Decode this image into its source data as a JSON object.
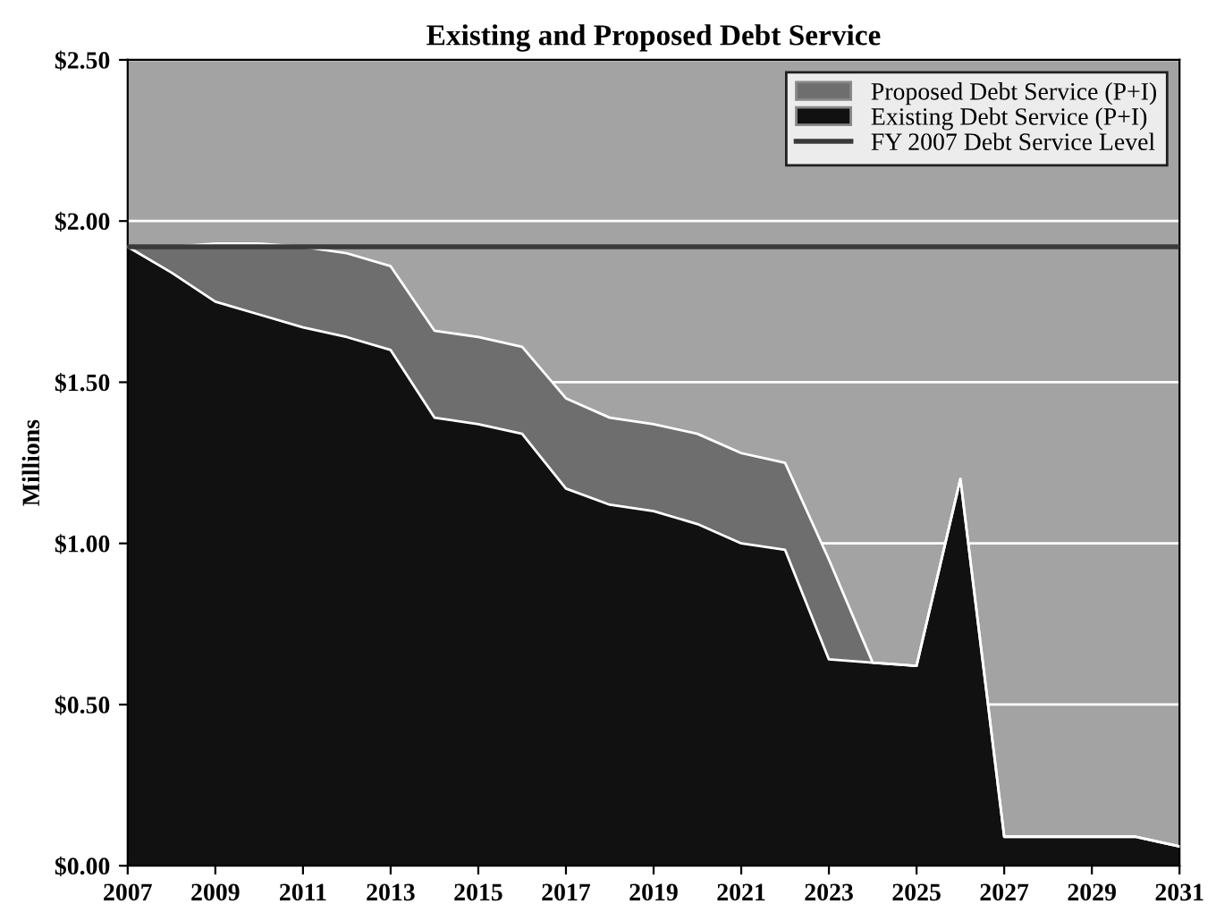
{
  "chart_data": {
    "type": "area",
    "title": "Existing and Proposed Debt Service",
    "ylabel": "Millions",
    "x": [
      2007,
      2008,
      2009,
      2010,
      2011,
      2012,
      2013,
      2014,
      2015,
      2016,
      2017,
      2018,
      2019,
      2020,
      2021,
      2022,
      2023,
      2024,
      2025,
      2026,
      2027,
      2028,
      2029,
      2030,
      2031
    ],
    "stacked": true,
    "series": [
      {
        "name": "Existing Debt Service (P+I)",
        "color": "#111111",
        "values": [
          1.92,
          1.84,
          1.75,
          1.71,
          1.67,
          1.64,
          1.6,
          1.39,
          1.37,
          1.34,
          1.17,
          1.12,
          1.1,
          1.06,
          1.0,
          0.98,
          0.64,
          0.63,
          0.62,
          1.2,
          0.09,
          0.09,
          0.09,
          0.09,
          0.06
        ]
      },
      {
        "name": "Proposed Debt Service (P+I)",
        "color": "#6e6e6e",
        "values": [
          0,
          0.08,
          0.18,
          0.22,
          0.25,
          0.26,
          0.26,
          0.27,
          0.27,
          0.27,
          0.28,
          0.27,
          0.27,
          0.28,
          0.28,
          0.27,
          0.31,
          0,
          0,
          0,
          0,
          0,
          0,
          0,
          0
        ]
      },
      {
        "name": "FY 2007 Debt Service Level",
        "type": "line",
        "color": "#3a3a3a",
        "values": [
          1.92,
          1.92,
          1.92,
          1.92,
          1.92,
          1.92,
          1.92,
          1.92,
          1.92,
          1.92,
          1.92,
          1.92,
          1.92,
          1.92,
          1.92,
          1.92,
          1.92,
          1.92,
          1.92,
          1.92,
          1.92,
          1.92,
          1.92,
          1.92,
          1.92
        ]
      }
    ],
    "xlim": [
      2007,
      2031
    ],
    "xticks": [
      2007,
      2009,
      2011,
      2013,
      2015,
      2017,
      2019,
      2021,
      2023,
      2025,
      2027,
      2029,
      2031
    ],
    "ylim": [
      0,
      2.5
    ],
    "yticks": [
      {
        "value": 0,
        "label": "$0.00"
      },
      {
        "value": 0.5,
        "label": "$0.50"
      },
      {
        "value": 1.0,
        "label": "$1.00"
      },
      {
        "value": 1.5,
        "label": "$1.50"
      },
      {
        "value": 2.0,
        "label": "$2.00"
      },
      {
        "value": 2.5,
        "label": "$2.50"
      }
    ],
    "grid": "y",
    "legend": "top right"
  }
}
